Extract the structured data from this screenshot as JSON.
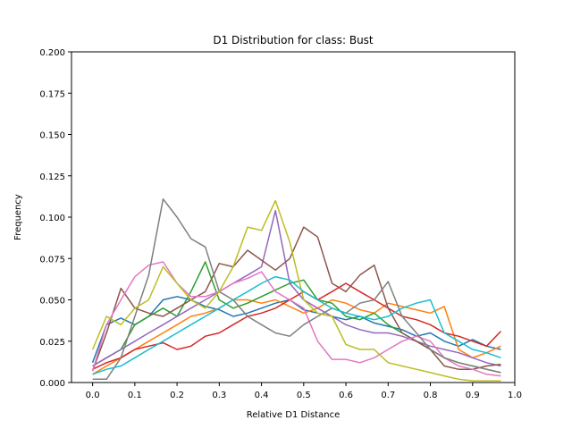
{
  "chart_data": {
    "type": "line",
    "title": "D1 Distribution for class: Bust",
    "xlabel": "Relative D1 Distance",
    "ylabel": "Frequency",
    "xlim": [
      -0.05,
      1.0
    ],
    "ylim": [
      0,
      0.2
    ],
    "xticks": [
      "0.0",
      "0.1",
      "0.2",
      "0.3",
      "0.4",
      "0.5",
      "0.6",
      "0.7",
      "0.8",
      "0.9",
      "1.0"
    ],
    "xtick_values": [
      0,
      0.1,
      0.2,
      0.3,
      0.4,
      0.5,
      0.6,
      0.7,
      0.8,
      0.9,
      1.0
    ],
    "yticks": [
      "0.000",
      "0.025",
      "0.050",
      "0.075",
      "0.100",
      "0.125",
      "0.150",
      "0.175",
      "0.200"
    ],
    "ytick_values": [
      0,
      0.025,
      0.05,
      0.075,
      0.1,
      0.125,
      0.15,
      0.175,
      0.2
    ],
    "grid": false,
    "x": [
      0.0,
      0.033,
      0.067,
      0.1,
      0.133,
      0.167,
      0.2,
      0.233,
      0.267,
      0.3,
      0.333,
      0.367,
      0.4,
      0.433,
      0.467,
      0.5,
      0.533,
      0.567,
      0.6,
      0.633,
      0.667,
      0.7,
      0.733,
      0.767,
      0.8,
      0.833,
      0.867,
      0.9,
      0.933,
      0.967
    ],
    "series": [
      {
        "color": "#1f77b4",
        "values": [
          0.012,
          0.035,
          0.039,
          0.035,
          0.04,
          0.05,
          0.052,
          0.05,
          0.046,
          0.044,
          0.04,
          0.042,
          0.045,
          0.048,
          0.05,
          0.044,
          0.042,
          0.04,
          0.038,
          0.04,
          0.036,
          0.034,
          0.032,
          0.028,
          0.03,
          0.025,
          0.022,
          0.026,
          0.022,
          0.02
        ]
      },
      {
        "color": "#ff7f0e",
        "values": [
          0.005,
          0.01,
          0.015,
          0.02,
          0.025,
          0.03,
          0.035,
          0.04,
          0.042,
          0.045,
          0.05,
          0.05,
          0.048,
          0.05,
          0.046,
          0.042,
          0.045,
          0.05,
          0.048,
          0.044,
          0.042,
          0.048,
          0.046,
          0.044,
          0.042,
          0.046,
          0.02,
          0.015,
          0.018,
          0.022
        ]
      },
      {
        "color": "#2ca02c",
        "values": [
          0.01,
          0.015,
          0.02,
          0.035,
          0.04,
          0.045,
          0.04,
          0.055,
          0.073,
          0.05,
          0.045,
          0.048,
          0.052,
          0.056,
          0.06,
          0.062,
          0.05,
          0.048,
          0.04,
          0.038,
          0.042,
          0.035,
          0.03,
          0.025,
          0.02,
          0.015,
          0.012,
          0.01,
          0.008,
          0.006
        ]
      },
      {
        "color": "#d62728",
        "values": [
          0.008,
          0.012,
          0.015,
          0.02,
          0.022,
          0.024,
          0.02,
          0.022,
          0.028,
          0.03,
          0.035,
          0.04,
          0.042,
          0.045,
          0.05,
          0.055,
          0.05,
          0.055,
          0.06,
          0.055,
          0.05,
          0.045,
          0.04,
          0.038,
          0.035,
          0.03,
          0.028,
          0.025,
          0.022,
          0.031
        ]
      },
      {
        "color": "#9467bd",
        "values": [
          0.01,
          0.015,
          0.02,
          0.025,
          0.03,
          0.035,
          0.04,
          0.045,
          0.05,
          0.055,
          0.06,
          0.065,
          0.07,
          0.104,
          0.06,
          0.05,
          0.045,
          0.04,
          0.035,
          0.032,
          0.03,
          0.03,
          0.028,
          0.025,
          0.022,
          0.02,
          0.018,
          0.015,
          0.012,
          0.01
        ]
      },
      {
        "color": "#8c564b",
        "values": [
          0.007,
          0.03,
          0.057,
          0.045,
          0.042,
          0.04,
          0.045,
          0.05,
          0.055,
          0.072,
          0.07,
          0.08,
          0.074,
          0.068,
          0.075,
          0.094,
          0.088,
          0.06,
          0.055,
          0.065,
          0.071,
          0.045,
          0.03,
          0.025,
          0.02,
          0.01,
          0.008,
          0.008,
          0.01,
          0.011
        ]
      },
      {
        "color": "#e377c2",
        "values": [
          0.007,
          0.035,
          0.05,
          0.064,
          0.071,
          0.073,
          0.06,
          0.052,
          0.052,
          0.055,
          0.06,
          0.063,
          0.067,
          0.055,
          0.05,
          0.045,
          0.025,
          0.014,
          0.014,
          0.012,
          0.015,
          0.02,
          0.025,
          0.028,
          0.025,
          0.015,
          0.01,
          0.008,
          0.005,
          0.004
        ]
      },
      {
        "color": "#7f7f7f",
        "values": [
          0.002,
          0.002,
          0.015,
          0.04,
          0.065,
          0.111,
          0.1,
          0.087,
          0.082,
          0.055,
          0.05,
          0.04,
          0.035,
          0.03,
          0.028,
          0.035,
          0.04,
          0.045,
          0.042,
          0.048,
          0.05,
          0.061,
          0.04,
          0.03,
          0.02,
          0.015,
          0.012,
          0.01,
          0.008,
          0.006
        ]
      },
      {
        "color": "#bcbd22",
        "values": [
          0.02,
          0.04,
          0.035,
          0.045,
          0.05,
          0.07,
          0.06,
          0.05,
          0.045,
          0.055,
          0.07,
          0.094,
          0.092,
          0.11,
          0.085,
          0.05,
          0.042,
          0.04,
          0.023,
          0.02,
          0.02,
          0.012,
          0.01,
          0.008,
          0.006,
          0.004,
          0.002,
          0.001,
          0.001,
          0.001
        ]
      },
      {
        "color": "#17becf",
        "values": [
          0.005,
          0.008,
          0.01,
          0.015,
          0.02,
          0.025,
          0.03,
          0.035,
          0.04,
          0.045,
          0.05,
          0.055,
          0.06,
          0.064,
          0.062,
          0.055,
          0.05,
          0.045,
          0.042,
          0.04,
          0.038,
          0.04,
          0.045,
          0.048,
          0.05,
          0.03,
          0.025,
          0.02,
          0.018,
          0.015
        ]
      }
    ]
  }
}
